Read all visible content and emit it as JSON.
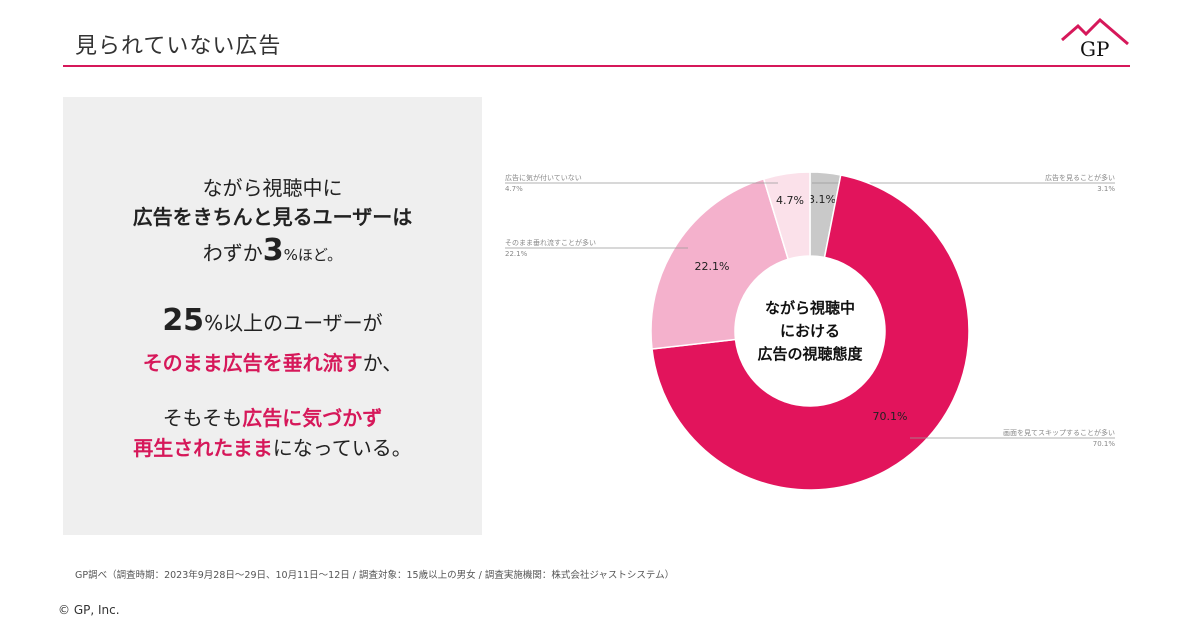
{
  "header": {
    "title": "見られていない広告",
    "logo_text": "GP"
  },
  "panel": {
    "l1": "ながら視聴中に",
    "l2": "広告をきちんと見るユーザーは",
    "l3a": "わずか",
    "l3b": "3",
    "l3c": "%ほど。",
    "l4a": "25",
    "l4b": "%以上のユーザーが",
    "l5a": "そのまま広告を垂れ流す",
    "l5b": "か、",
    "l6a": "そもそも",
    "l6b": "広告に気づかず",
    "l7a": "再生されたまま",
    "l7b": "になっている。"
  },
  "chart_data": {
    "type": "pie",
    "title": "ながら視聴中における広告の視聴態度",
    "title_lines": [
      "ながら視聴中",
      "における",
      "広告の視聴態度"
    ],
    "slices": [
      {
        "label": "広告を見ることが多い",
        "value": 3.1,
        "value_label": "3.1%",
        "color": "#c9c9c9"
      },
      {
        "label": "画面を見てスキップすることが多い",
        "value": 70.1,
        "value_label": "70.1%",
        "color": "#e2145c"
      },
      {
        "label": "そのまま垂れ流すことが多い",
        "value": 22.1,
        "value_label": "22.1%",
        "color": "#f4b1cc"
      },
      {
        "label": "広告に気が付いていない",
        "value": 4.7,
        "value_label": "4.7%",
        "color": "#fbe1ea"
      }
    ]
  },
  "footer": {
    "note": "GP調べ（調査時期：2023年9月28日〜29日、10月11日〜12日 / 調査対象：15歳以上の男女 / 調査実施機関：株式会社ジャストシステム）",
    "copyright": "© GP, Inc."
  }
}
